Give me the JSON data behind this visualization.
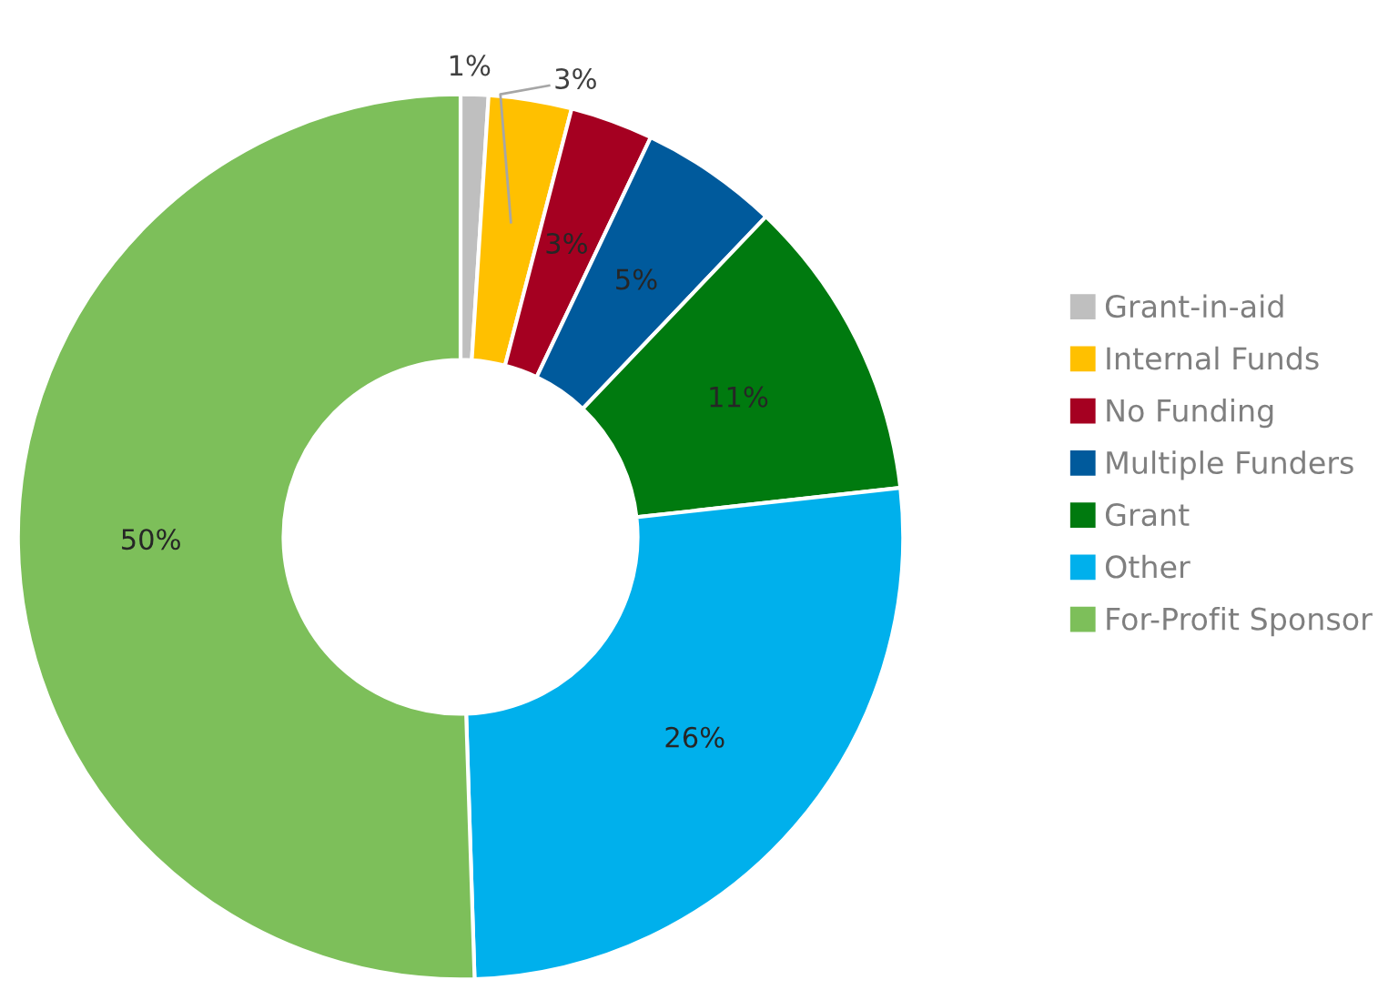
{
  "chart_data": {
    "type": "donut",
    "categories": [
      "Grant-in-aid",
      "Internal Funds",
      "No Funding",
      "Multiple Funders",
      "Grant",
      "Other",
      "For-Profit Sponsor"
    ],
    "values": [
      1,
      3,
      3,
      5,
      11,
      26,
      50
    ],
    "colors": [
      "#bfbfbf",
      "#ffc000",
      "#a50021",
      "#005a9c",
      "#007a0f",
      "#00b0ec",
      "#7dbf5a"
    ],
    "value_labels": [
      "1%",
      "3%",
      "3%",
      "5%",
      "11%",
      "26%",
      "50%"
    ],
    "legend": "right"
  }
}
